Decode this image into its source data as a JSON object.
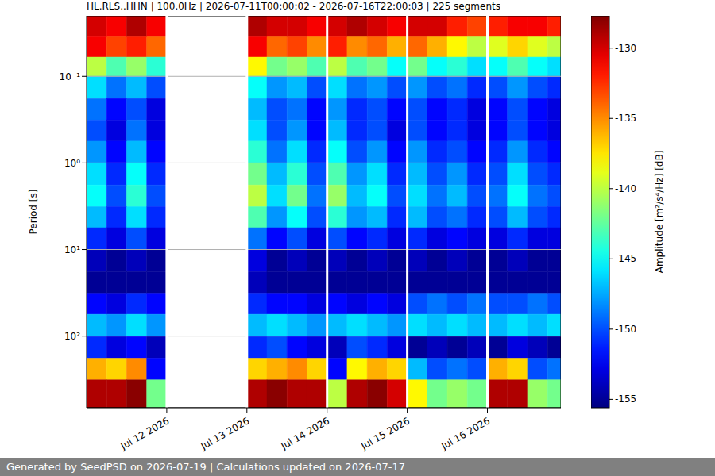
{
  "chart_data": {
    "type": "heatmap",
    "title": "HL.RLS..HHN | 100.0Hz | 2026-07-11T00:00:02 - 2026-07-16T22:00:03 | 225 segments",
    "ylabel": "Period [s]",
    "log": "y",
    "grid": true,
    "xlim": [
      "2026-07-11T00:00:02",
      "2026-07-16T22:00:03"
    ],
    "xticks": [
      {
        "value": "2026-07-12T00:00",
        "label": "Jul 12 2026"
      },
      {
        "value": "2026-07-13T00:00",
        "label": "Jul 13 2026"
      },
      {
        "value": "2026-07-14T00:00",
        "label": "Jul 14 2026"
      },
      {
        "value": "2026-07-15T00:00",
        "label": "Jul 15 2026"
      },
      {
        "value": "2026-07-16T00:00",
        "label": "Jul 16 2026"
      }
    ],
    "ylim": [
      0.02,
      673
    ],
    "yticks": [
      {
        "value": 0.1,
        "label": "10⁻¹"
      },
      {
        "value": 1,
        "label": "10⁰"
      },
      {
        "value": 10,
        "label": "10¹"
      },
      {
        "value": 100,
        "label": "10²"
      }
    ],
    "x_edges": [
      "2026-07-11T00:00:02",
      "2026-07-11T06:00",
      "2026-07-11T12:00",
      "2026-07-11T18:00",
      "2026-07-12T00:00",
      "2026-07-12T06:00",
      "2026-07-12T12:00",
      "2026-07-12T18:00",
      "2026-07-13T00:00",
      "2026-07-13T06:00",
      "2026-07-13T12:00",
      "2026-07-13T18:00",
      "2026-07-14T00:00",
      "2026-07-14T06:00",
      "2026-07-14T12:00",
      "2026-07-14T18:00",
      "2026-07-15T00:00",
      "2026-07-15T06:00",
      "2026-07-15T12:00",
      "2026-07-15T18:00",
      "2026-07-16T00:00",
      "2026-07-16T06:00",
      "2026-07-16T12:00",
      "2026-07-16T18:00",
      "2026-07-16T22:00:03"
    ],
    "y_edges": [
      0.02,
      0.035,
      0.06,
      0.1,
      0.18,
      0.32,
      0.56,
      1,
      1.8,
      3.2,
      5.6,
      10,
      18,
      32,
      56,
      100,
      180,
      320,
      673
    ],
    "cells": [
      [
        -130,
        -131,
        -129,
        -131,
        null,
        null,
        null,
        null,
        -129,
        -130,
        -130,
        -131,
        -130,
        -129,
        -130,
        -131,
        -130,
        -130,
        -132,
        -133,
        -132,
        -131,
        -131,
        -132
      ],
      [
        -131,
        -133,
        -132,
        -134,
        null,
        null,
        null,
        null,
        -131,
        -134,
        -133,
        -135,
        -132,
        -135,
        -134,
        -136,
        -134,
        -136,
        -138,
        -140,
        -139,
        -137,
        -139,
        -140
      ],
      [
        -140,
        -143,
        -141,
        -144,
        null,
        null,
        null,
        null,
        -138,
        -142,
        -141,
        -143,
        -140,
        -143,
        -142,
        -145,
        -142,
        -145,
        -144,
        -146,
        -145,
        -143,
        -145,
        -146
      ],
      [
        -146,
        -149,
        -147,
        -150,
        null,
        null,
        null,
        null,
        -145,
        -148,
        -147,
        -150,
        -146,
        -149,
        -148,
        -150,
        -148,
        -150,
        -149,
        -151,
        -150,
        -148,
        -150,
        -151
      ],
      [
        -149,
        -152,
        -150,
        -153,
        null,
        null,
        null,
        null,
        -147,
        -150,
        -149,
        -152,
        -148,
        -151,
        -150,
        -152,
        -150,
        -152,
        -151,
        -153,
        -152,
        -150,
        -152,
        -153
      ],
      [
        -150,
        -153,
        -149,
        -153,
        null,
        null,
        null,
        null,
        -146,
        -150,
        -148,
        -152,
        -147,
        -151,
        -150,
        -153,
        -150,
        -152,
        -151,
        -153,
        -152,
        -150,
        -152,
        -153
      ],
      [
        -148,
        -152,
        -147,
        -152,
        null,
        null,
        null,
        null,
        -144,
        -149,
        -146,
        -151,
        -145,
        -150,
        -148,
        -152,
        -148,
        -151,
        -150,
        -152,
        -151,
        -148,
        -151,
        -152
      ],
      [
        -146,
        -151,
        -145,
        -151,
        null,
        null,
        null,
        null,
        -142,
        -147,
        -144,
        -150,
        -143,
        -148,
        -146,
        -151,
        -147,
        -150,
        -148,
        -151,
        -150,
        -146,
        -150,
        -151
      ],
      [
        -145,
        -150,
        -144,
        -150,
        null,
        null,
        null,
        null,
        -140,
        -146,
        -142,
        -149,
        -141,
        -147,
        -145,
        -150,
        -146,
        -149,
        -147,
        -150,
        -149,
        -145,
        -149,
        -150
      ],
      [
        -147,
        -151,
        -146,
        -151,
        null,
        null,
        null,
        null,
        -143,
        -148,
        -145,
        -150,
        -144,
        -148,
        -147,
        -151,
        -147,
        -150,
        -149,
        -151,
        -150,
        -147,
        -150,
        -151
      ],
      [
        -151,
        -153,
        -150,
        -153,
        null,
        null,
        null,
        null,
        -149,
        -152,
        -150,
        -153,
        -150,
        -152,
        -151,
        -153,
        -151,
        -153,
        -152,
        -153,
        -153,
        -151,
        -153,
        -153
      ],
      [
        -154,
        -155,
        -154,
        -155,
        null,
        null,
        null,
        null,
        -153,
        -155,
        -154,
        -155,
        -154,
        -155,
        -154,
        -155,
        -154,
        -155,
        -154,
        -155,
        -155,
        -154,
        -155,
        -155
      ],
      [
        -155,
        -155,
        -155,
        -155,
        null,
        null,
        null,
        null,
        -154,
        -155,
        -155,
        -155,
        -155,
        -155,
        -155,
        -155,
        -155,
        -155,
        -155,
        -155,
        -155,
        -155,
        -155,
        -155
      ],
      [
        -152,
        -153,
        -151,
        -152,
        null,
        null,
        null,
        null,
        -151,
        -152,
        -152,
        -153,
        -152,
        -153,
        -152,
        -153,
        -150,
        -149,
        -150,
        -149,
        -150,
        -150,
        -149,
        -150
      ],
      [
        -147,
        -148,
        -146,
        -148,
        null,
        null,
        null,
        null,
        -147,
        -146,
        -147,
        -148,
        -147,
        -146,
        -147,
        -148,
        -146,
        -147,
        -146,
        -147,
        -147,
        -146,
        -147,
        -146
      ],
      [
        -151,
        -153,
        -152,
        -154,
        null,
        null,
        null,
        null,
        -151,
        -150,
        -152,
        -153,
        -154,
        -150,
        -151,
        -153,
        -155,
        -154,
        -155,
        -154,
        -155,
        -153,
        -154,
        -155
      ],
      [
        -136,
        -137,
        -135,
        -152,
        null,
        null,
        null,
        null,
        -137,
        -136,
        -135,
        -137,
        -152,
        -138,
        -136,
        -137,
        -147,
        -150,
        -149,
        -150,
        -136,
        -137,
        -150,
        -149
      ],
      [
        -129,
        -129,
        -128,
        -142,
        null,
        null,
        null,
        null,
        -129,
        -128,
        -129,
        -129,
        -140,
        -129,
        -128,
        -130,
        -138,
        -142,
        -141,
        -142,
        -129,
        -129,
        -141,
        -142
      ]
    ],
    "colorbar": {
      "label": "Amplitude [m²/s⁴/Hz] [dB]",
      "range": [
        -155.6,
        -127.7
      ],
      "ticks": [
        -155,
        -150,
        -145,
        -140,
        -135,
        -130
      ]
    },
    "footer": "Generated by SeedPSD on 2026-07-19 | Calculations updated on 2026-07-17"
  }
}
